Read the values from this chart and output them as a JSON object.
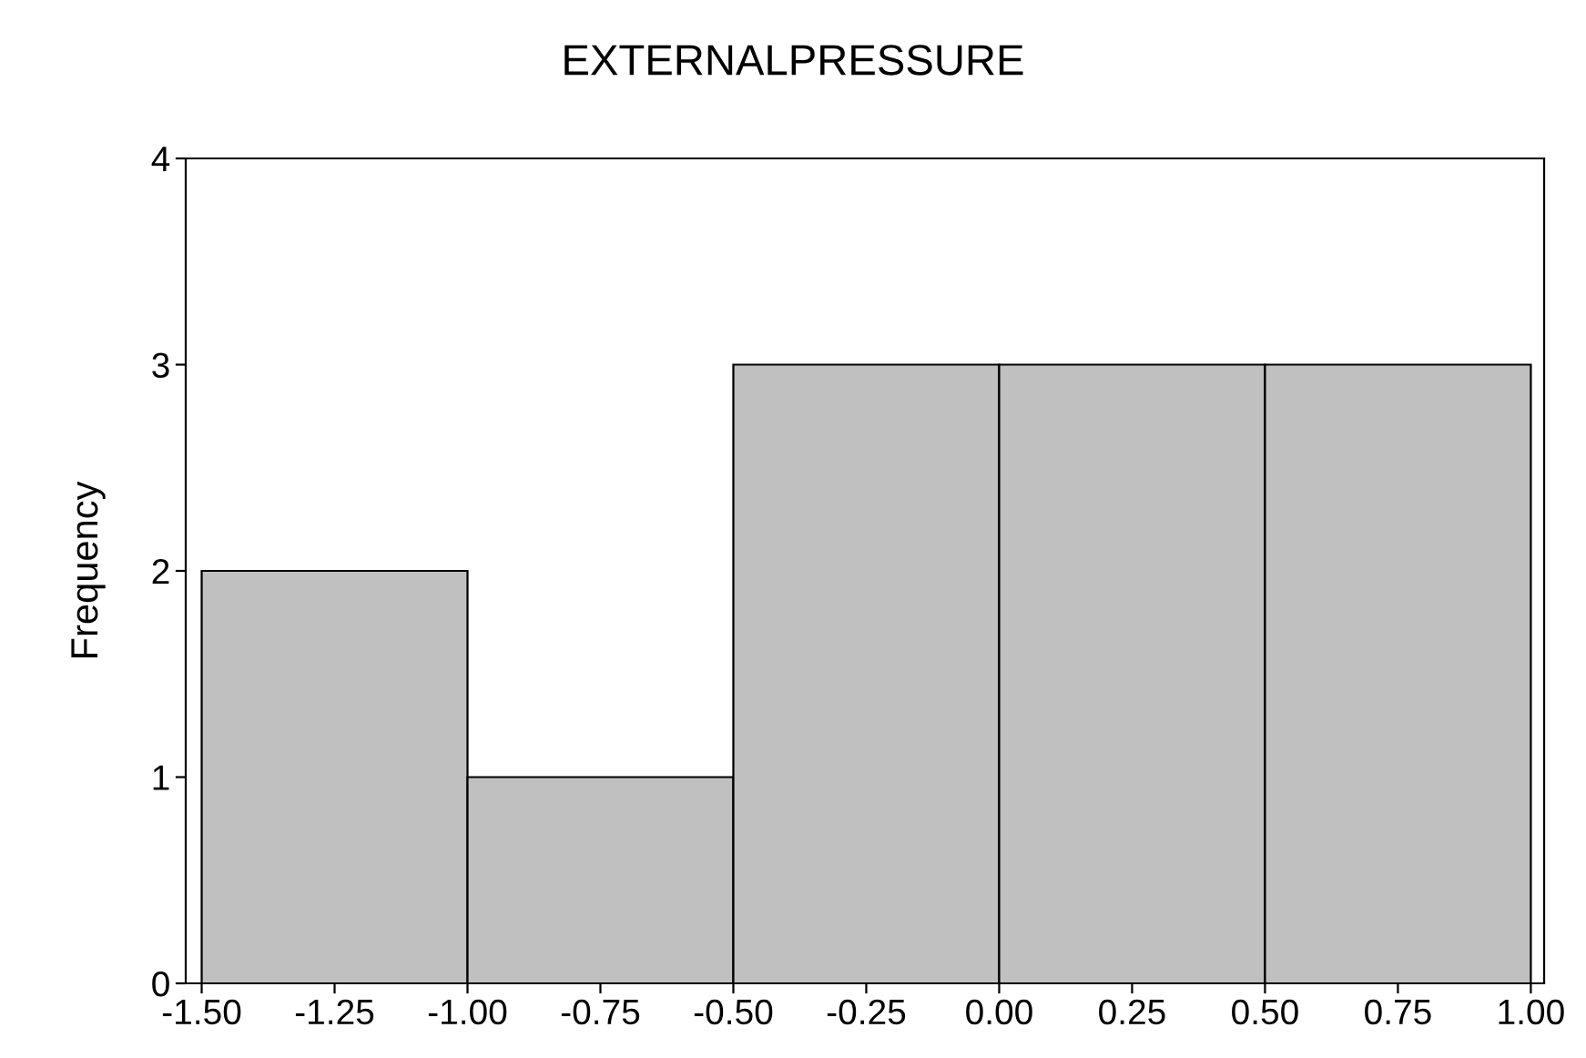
{
  "chart_data": {
    "type": "histogram",
    "title": "EXTERNALPRESSURE",
    "ylabel": "Frequency",
    "bins": [
      -1.5,
      -1.0,
      -0.5,
      0.0,
      0.5,
      1.0
    ],
    "values": [
      2,
      1,
      3,
      3,
      3
    ],
    "color": "#c0c0c0",
    "xlim": [
      -1.53,
      1.025
    ],
    "ylim": [
      0,
      4
    ],
    "xticks": [
      {
        "value": -1.5,
        "label": "-1.50"
      },
      {
        "value": -1.25,
        "label": "-1.25"
      },
      {
        "value": -1.0,
        "label": "-1.00"
      },
      {
        "value": -0.75,
        "label": "-0.75"
      },
      {
        "value": -0.5,
        "label": "-0.50"
      },
      {
        "value": -0.25,
        "label": "-0.25"
      },
      {
        "value": 0.0,
        "label": "0.00"
      },
      {
        "value": 0.25,
        "label": "0.25"
      },
      {
        "value": 0.5,
        "label": "0.50"
      },
      {
        "value": 0.75,
        "label": "0.75"
      },
      {
        "value": 1.0,
        "label": "1.00"
      }
    ],
    "yticks": [
      0,
      1,
      2,
      3,
      4
    ],
    "grid": false
  }
}
